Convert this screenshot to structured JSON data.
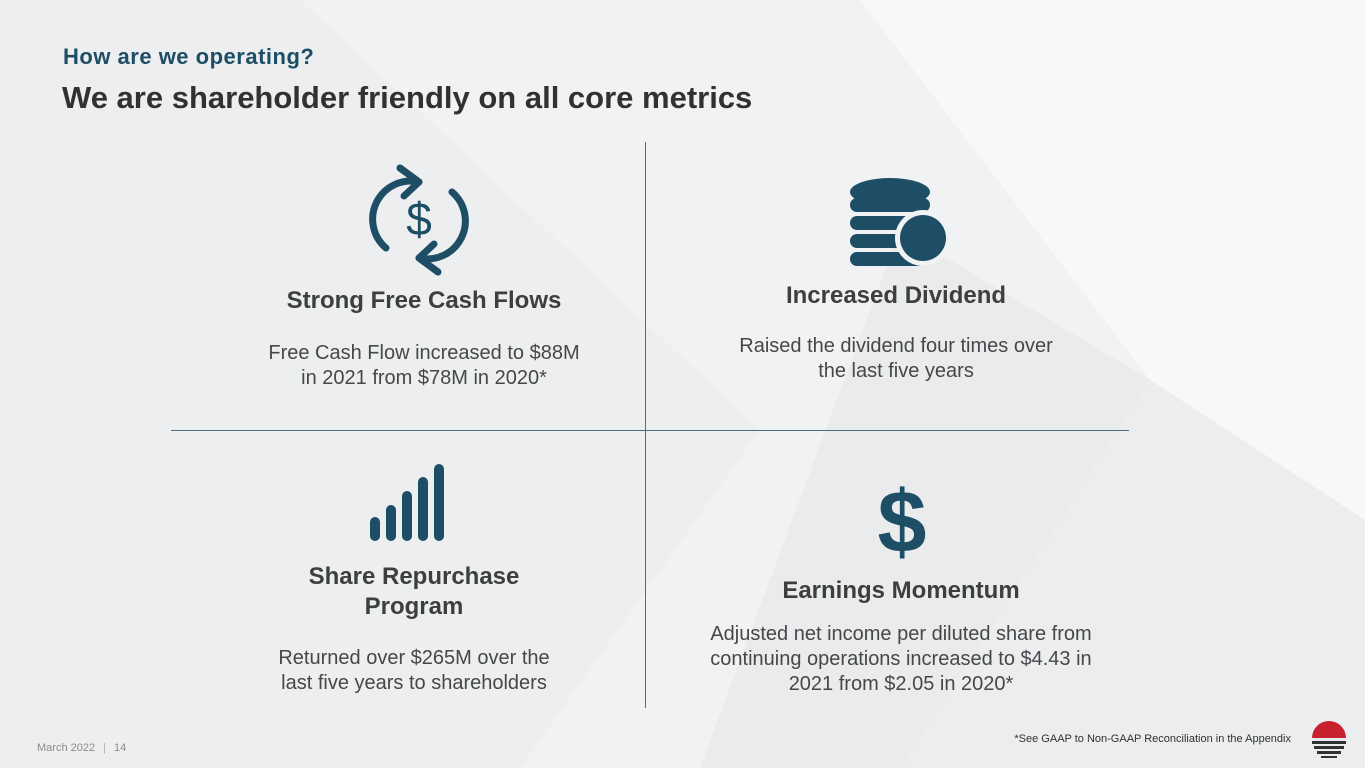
{
  "header": {
    "eyebrow": "How are we operating?",
    "title": "We are shareholder friendly on all core metrics"
  },
  "quadrants": [
    {
      "icon": "cash-cycle-icon",
      "heading": "Strong Free Cash Flows",
      "desc_line1": "Free Cash Flow increased to $88M",
      "desc_line2": "in 2021 from $78M in 2020*"
    },
    {
      "icon": "coin-stack-icon",
      "heading": "Increased Dividend",
      "desc_line1": "Raised the dividend four times over",
      "desc_line2": "the last five years"
    },
    {
      "icon": "signal-bars-icon",
      "heading_line1": "Share Repurchase",
      "heading_line2": "Program",
      "desc_line1": "Returned over $265M over the",
      "desc_line2": "last five years to shareholders"
    },
    {
      "icon": "dollar-sign-icon",
      "heading": "Earnings Momentum",
      "desc_line1": "Adjusted net income per diluted share from",
      "desc_line2": "continuing operations increased to $4.43 in",
      "desc_line3": "2021 from $2.05 in 2020*"
    }
  ],
  "footer": {
    "date": "March 2022",
    "separator": "|",
    "page_number": "14",
    "footnote": "*See GAAP to Non-GAAP Reconciliation in the Appendix"
  },
  "colors": {
    "accent": "#1d4e66",
    "logo_red": "#c8202f",
    "text": "#3c3e40"
  },
  "cash_icon_symbol": "$",
  "dollar_symbol": "$"
}
